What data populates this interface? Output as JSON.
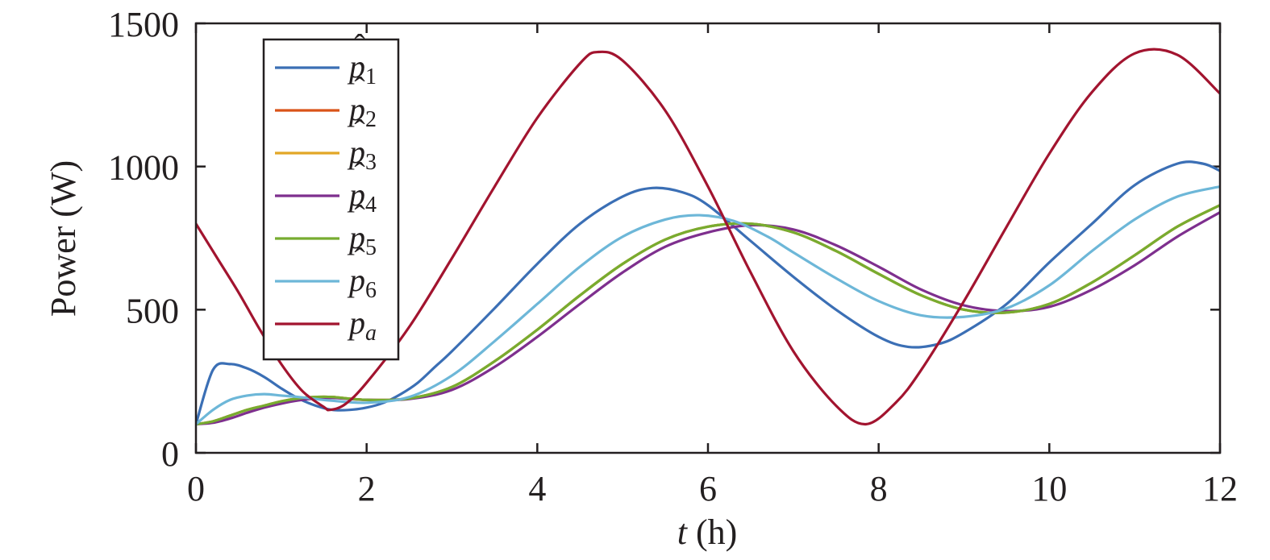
{
  "chart_data": {
    "type": "line",
    "xlabel": {
      "var": "t",
      "unit": " (h)"
    },
    "ylabel": "Power (W)",
    "xlim": [
      0,
      12
    ],
    "ylim": [
      0,
      1500
    ],
    "xticks": [
      0,
      2,
      4,
      6,
      8,
      10,
      12
    ],
    "yticks": [
      0,
      500,
      1000,
      1500
    ],
    "grid": false,
    "legend_position": "top-left",
    "series": [
      {
        "name": "p̂1",
        "base": "p",
        "sub": "1",
        "hat": true,
        "color": "#3b6fb5",
        "x": [
          0,
          0.2,
          0.4,
          0.6,
          0.8,
          1.0,
          1.2,
          1.4,
          1.6,
          1.8,
          2.0,
          2.2,
          2.4,
          2.6,
          2.8,
          3.0,
          3.5,
          4.0,
          4.5,
          5.0,
          5.35,
          5.7,
          6.0,
          6.5,
          7.0,
          7.5,
          8.0,
          8.35,
          8.7,
          9.0,
          9.5,
          10.0,
          10.5,
          11.0,
          11.5,
          11.8,
          12.0
        ],
        "y": [
          100,
          290,
          310,
          295,
          265,
          225,
          190,
          165,
          150,
          150,
          158,
          175,
          205,
          245,
          300,
          355,
          505,
          660,
          800,
          895,
          925,
          910,
          865,
          740,
          615,
          500,
          405,
          370,
          380,
          420,
          520,
          665,
          800,
          935,
          1010,
          1010,
          985
        ]
      },
      {
        "name": "p̂2",
        "base": "p",
        "sub": "2",
        "hat": true,
        "color": "#d95319",
        "x": [
          0,
          0.2,
          0.4,
          0.6,
          0.8,
          1.0,
          1.2,
          1.4,
          1.6,
          2.0,
          2.5,
          3.0,
          3.5,
          4.0,
          4.5,
          5.0,
          5.5,
          6.0,
          6.5,
          7.0,
          7.5,
          8.0,
          8.5,
          9.0,
          9.5,
          10.0,
          10.5,
          11.0,
          11.5,
          12.0
        ],
        "y": [
          100,
          110,
          130,
          150,
          165,
          180,
          190,
          195,
          195,
          185,
          190,
          230,
          320,
          430,
          550,
          660,
          745,
          790,
          800,
          770,
          705,
          625,
          550,
          500,
          490,
          520,
          595,
          690,
          790,
          865
        ]
      },
      {
        "name": "p̂3",
        "base": "p",
        "sub": "3",
        "hat": true,
        "color": "#e2a626",
        "x": [
          0,
          0.2,
          0.4,
          0.6,
          0.8,
          1.0,
          1.2,
          1.4,
          1.6,
          2.0,
          2.5,
          3.0,
          3.5,
          4.0,
          4.5,
          5.0,
          5.5,
          6.0,
          6.5,
          7.0,
          7.5,
          8.0,
          8.5,
          9.0,
          9.5,
          10.0,
          10.5,
          11.0,
          11.5,
          12.0
        ],
        "y": [
          100,
          110,
          130,
          150,
          165,
          180,
          190,
          195,
          195,
          185,
          190,
          230,
          320,
          430,
          550,
          660,
          745,
          790,
          800,
          770,
          705,
          625,
          550,
          500,
          490,
          520,
          595,
          690,
          790,
          865
        ]
      },
      {
        "name": "p̂4",
        "base": "p",
        "sub": "4",
        "hat": true,
        "color": "#7e2f8e",
        "x": [
          0,
          0.2,
          0.4,
          0.6,
          0.8,
          1.0,
          1.2,
          1.4,
          1.6,
          2.0,
          2.5,
          3.0,
          3.5,
          4.0,
          4.5,
          5.0,
          5.5,
          6.0,
          6.5,
          7.0,
          7.5,
          8.0,
          8.5,
          9.0,
          9.5,
          10.0,
          10.5,
          11.0,
          11.5,
          12.0
        ],
        "y": [
          100,
          105,
          120,
          140,
          158,
          172,
          183,
          190,
          192,
          185,
          188,
          220,
          300,
          405,
          520,
          630,
          720,
          770,
          795,
          780,
          725,
          650,
          570,
          515,
          495,
          510,
          570,
          655,
          755,
          840
        ]
      },
      {
        "name": "p̂5",
        "base": "p",
        "sub": "5",
        "hat": true,
        "color": "#77ac30",
        "x": [
          0,
          0.2,
          0.4,
          0.6,
          0.8,
          1.0,
          1.2,
          1.4,
          1.6,
          2.0,
          2.5,
          3.0,
          3.5,
          4.0,
          4.5,
          5.0,
          5.5,
          6.0,
          6.5,
          7.0,
          7.5,
          8.0,
          8.5,
          9.0,
          9.5,
          10.0,
          10.5,
          11.0,
          11.5,
          12.0
        ],
        "y": [
          100,
          110,
          130,
          150,
          165,
          180,
          190,
          195,
          195,
          185,
          190,
          230,
          320,
          430,
          550,
          660,
          745,
          790,
          800,
          770,
          705,
          625,
          550,
          500,
          490,
          520,
          595,
          690,
          790,
          865
        ]
      },
      {
        "name": "p̂6",
        "base": "p",
        "sub": "6",
        "hat": true,
        "color": "#6db7d8",
        "x": [
          0,
          0.2,
          0.4,
          0.6,
          0.8,
          1.0,
          1.2,
          1.4,
          1.6,
          2.0,
          2.5,
          3.0,
          3.5,
          4.0,
          4.5,
          5.0,
          5.5,
          5.9,
          6.3,
          6.7,
          7.0,
          7.5,
          8.0,
          8.5,
          9.0,
          9.5,
          10.0,
          10.5,
          11.0,
          11.5,
          12.0
        ],
        "y": [
          100,
          150,
          185,
          200,
          205,
          200,
          195,
          188,
          182,
          175,
          195,
          270,
          390,
          520,
          650,
          755,
          815,
          830,
          810,
          755,
          700,
          610,
          530,
          480,
          475,
          505,
          585,
          705,
          815,
          895,
          930
        ]
      },
      {
        "name": "pa",
        "base": "p",
        "sub": "a",
        "hat": false,
        "color": "#a2142f",
        "x": [
          0,
          0.25,
          0.5,
          0.75,
          1.0,
          1.25,
          1.5,
          1.57,
          1.75,
          2.0,
          2.5,
          3.0,
          3.5,
          4.0,
          4.5,
          4.71,
          5.0,
          5.5,
          6.0,
          6.5,
          7.0,
          7.5,
          7.85,
          8.2,
          8.5,
          9.0,
          9.5,
          10.0,
          10.5,
          11.0,
          11.5,
          12.0
        ],
        "y": [
          800,
          680,
          560,
          430,
          310,
          215,
          160,
          150,
          170,
          245,
          440,
          680,
          930,
          1170,
          1360,
          1400,
          1370,
          1195,
          930,
          630,
          355,
          165,
          100,
          175,
          290,
          530,
          790,
          1045,
          1260,
          1395,
          1390,
          1255
        ]
      }
    ]
  }
}
